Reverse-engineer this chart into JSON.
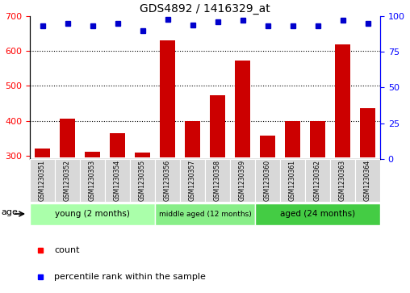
{
  "title": "GDS4892 / 1416329_at",
  "samples": [
    "GSM1230351",
    "GSM1230352",
    "GSM1230353",
    "GSM1230354",
    "GSM1230355",
    "GSM1230356",
    "GSM1230357",
    "GSM1230358",
    "GSM1230359",
    "GSM1230360",
    "GSM1230361",
    "GSM1230362",
    "GSM1230363",
    "GSM1230364"
  ],
  "counts": [
    320,
    405,
    310,
    365,
    308,
    630,
    398,
    472,
    572,
    358,
    398,
    400,
    620,
    435
  ],
  "percentile_ranks": [
    93,
    95,
    93,
    95,
    90,
    98,
    94,
    96,
    97,
    93,
    93,
    93,
    97,
    95
  ],
  "groups": [
    {
      "label": "young (2 months)",
      "start": 0,
      "end": 5,
      "color": "#AAFFAA"
    },
    {
      "label": "middle aged (12 months)",
      "start": 5,
      "end": 9,
      "color": "#88EE88"
    },
    {
      "label": "aged (24 months)",
      "start": 9,
      "end": 14,
      "color": "#44CC44"
    }
  ],
  "ylim_left": [
    290,
    700
  ],
  "ylim_right": [
    0,
    100
  ],
  "yticks_left": [
    300,
    400,
    500,
    600,
    700
  ],
  "yticks_right": [
    0,
    25,
    50,
    75,
    100
  ],
  "bar_color": "#CC0000",
  "dot_color": "#0000CC",
  "bar_bottom": 295,
  "grid_lines": [
    400,
    500,
    600
  ]
}
